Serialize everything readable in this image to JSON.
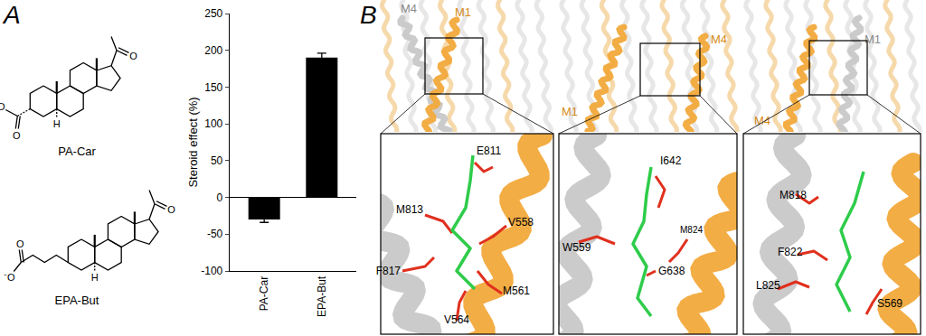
{
  "panels": {
    "A": {
      "letter": "A",
      "structures": [
        {
          "name": "PA-Car",
          "atoms": [
            "O",
            "O",
            "⁻O",
            "H"
          ]
        },
        {
          "name": "EPA-But",
          "atoms": [
            "O",
            "O",
            "⁻O",
            "H"
          ]
        }
      ]
    },
    "B": {
      "letter": "B",
      "views": [
        {
          "helices": [
            {
              "label": "M4",
              "color": "gray"
            },
            {
              "label": "M1",
              "color": "orange"
            }
          ],
          "residues": [
            "E811",
            "M813",
            "F817",
            "V558",
            "M561",
            "V564"
          ]
        },
        {
          "helices": [
            {
              "label": "M4",
              "color": "orange"
            },
            {
              "label": "M1",
              "color": "orange"
            }
          ],
          "residues": [
            "I642",
            "W559",
            "G638",
            "M824"
          ]
        },
        {
          "helices": [
            {
              "label": "M1",
              "color": "gray"
            },
            {
              "label": "M4",
              "color": "orange"
            }
          ],
          "residues": [
            "M818",
            "F822",
            "L825",
            "S569"
          ]
        }
      ]
    }
  },
  "chart_data": {
    "type": "bar",
    "categories": [
      "PA-Car",
      "EPA-But"
    ],
    "values": [
      -30,
      190
    ],
    "errors": [
      4,
      6
    ],
    "color": "#000000",
    "y_label": "Steroid effect (%)",
    "ylim": [
      -100,
      250
    ],
    "yticks": [
      -100,
      -50,
      0,
      50,
      100,
      150,
      200,
      250
    ]
  }
}
